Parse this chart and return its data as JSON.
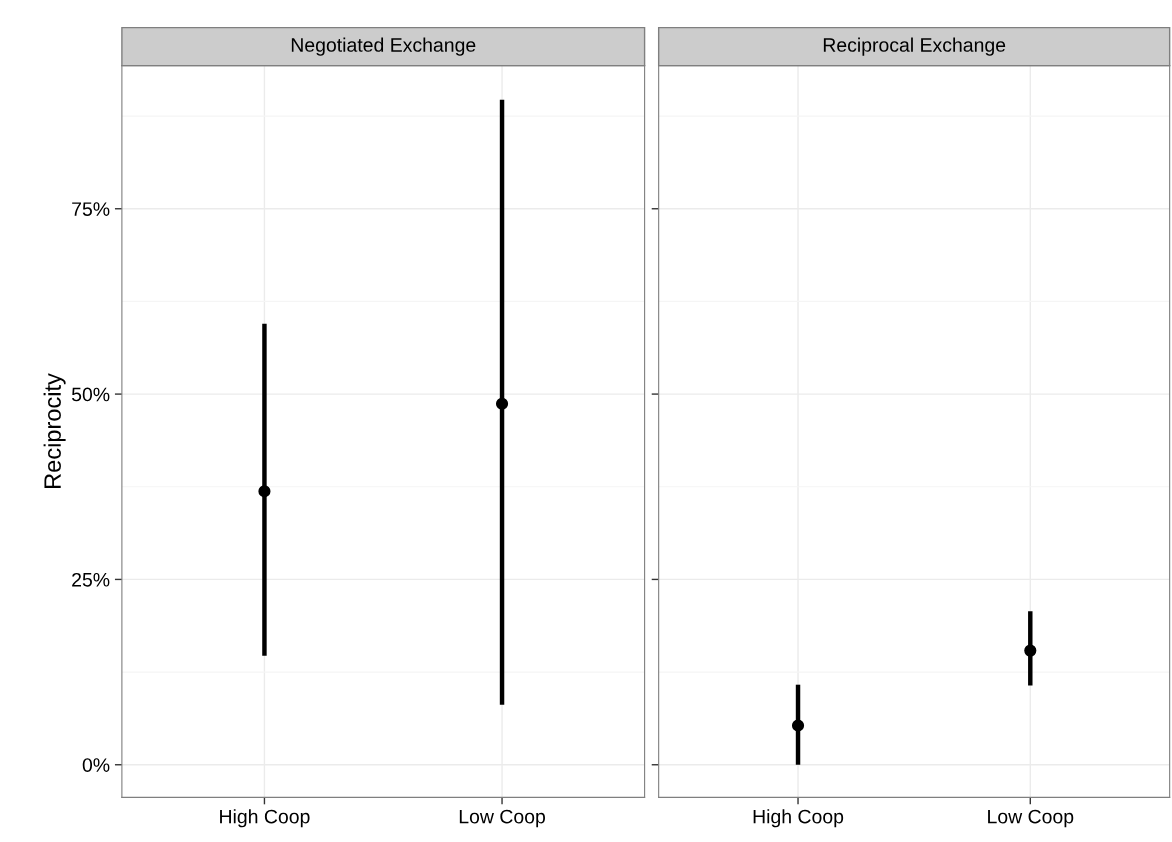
{
  "chart_data": [
    {
      "type": "scatter",
      "title": "Negotiated Exchange",
      "ylabel": "Reciprocity",
      "categories": [
        "High Coop",
        "Low Coop"
      ],
      "series": [
        {
          "color": "#000000",
          "values": [
            36.9,
            48.7
          ],
          "errors": [
            [
              14.7,
              59.5
            ],
            [
              8.1,
              89.7
            ]
          ]
        }
      ],
      "ylim": [
        -4.4,
        94.3
      ],
      "yticks": [
        {
          "value": 0,
          "label": "0%"
        },
        {
          "value": 25,
          "label": "25%"
        },
        {
          "value": 50,
          "label": "50%"
        },
        {
          "value": 75,
          "label": "75%"
        }
      ],
      "grid": true,
      "marker": "circle"
    },
    {
      "type": "scatter",
      "title": "Reciprocal Exchange",
      "categories": [
        "High Coop",
        "Low Coop"
      ],
      "series": [
        {
          "color": "#000000",
          "values": [
            5.3,
            15.4
          ],
          "errors": [
            [
              0,
              10.8
            ],
            [
              10.7,
              20.7
            ]
          ]
        }
      ],
      "ylim": [
        -4.4,
        94.3
      ],
      "yticks": [
        {
          "value": 0,
          "label": null
        },
        {
          "value": 25,
          "label": null
        },
        {
          "value": 50,
          "label": null
        },
        {
          "value": 75,
          "label": null
        }
      ],
      "tick_labels": "x",
      "grid": true,
      "marker": "circle"
    }
  ]
}
